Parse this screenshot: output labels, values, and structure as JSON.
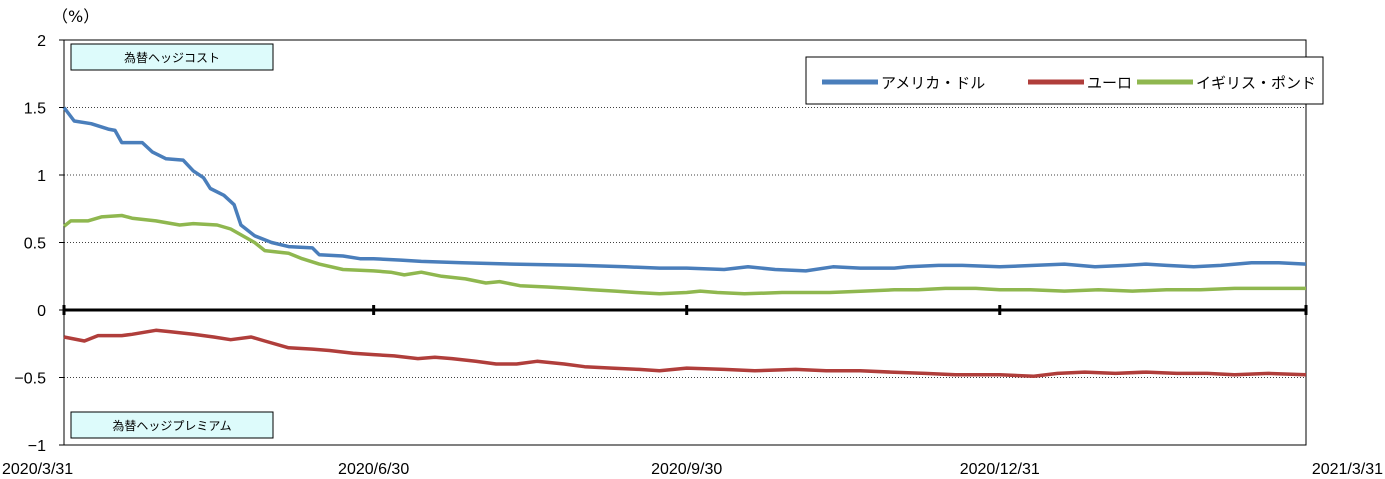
{
  "chart_data": {
    "type": "line",
    "unit": "（%）",
    "ylim": [
      -1,
      2
    ],
    "yticks": [
      "2",
      "1.5",
      "1",
      "0.5",
      "0",
      "−0.5",
      "−1"
    ],
    "ytick_values": [
      2,
      1.5,
      1,
      0.5,
      0,
      -0.5,
      -1
    ],
    "xlim": [
      "2020-03-31",
      "2021-03-31"
    ],
    "xticks": [
      "2020/3/31",
      "2020/6/30",
      "2020/9/30",
      "2020/12/31",
      "2021/3/31"
    ],
    "xtick_values": [
      "2020-03-31",
      "2020-06-30",
      "2020-09-30",
      "2020-12-31",
      "2021-03-31"
    ],
    "grid": "horizontal dotted",
    "annotations": {
      "cost": "為替ヘッジコスト",
      "premium": "為替ヘッジプレミアム"
    },
    "legend_position": "top-right",
    "series": [
      {
        "name": "アメリカ・ドル",
        "color": "#4a7ebb",
        "points": [
          [
            "2020-03-31",
            1.5
          ],
          [
            "2020-04-03",
            1.4
          ],
          [
            "2020-04-08",
            1.38
          ],
          [
            "2020-04-13",
            1.34
          ],
          [
            "2020-04-15",
            1.33
          ],
          [
            "2020-04-17",
            1.24
          ],
          [
            "2020-04-23",
            1.24
          ],
          [
            "2020-04-26",
            1.17
          ],
          [
            "2020-04-30",
            1.12
          ],
          [
            "2020-05-05",
            1.11
          ],
          [
            "2020-05-08",
            1.03
          ],
          [
            "2020-05-11",
            0.98
          ],
          [
            "2020-05-13",
            0.9
          ],
          [
            "2020-05-17",
            0.85
          ],
          [
            "2020-05-20",
            0.78
          ],
          [
            "2020-05-22",
            0.63
          ],
          [
            "2020-05-26",
            0.55
          ],
          [
            "2020-05-31",
            0.5
          ],
          [
            "2020-06-05",
            0.47
          ],
          [
            "2020-06-12",
            0.46
          ],
          [
            "2020-06-14",
            0.41
          ],
          [
            "2020-06-21",
            0.4
          ],
          [
            "2020-06-26",
            0.38
          ],
          [
            "2020-06-30",
            0.38
          ],
          [
            "2020-07-08",
            0.37
          ],
          [
            "2020-07-14",
            0.36
          ],
          [
            "2020-07-26",
            0.35
          ],
          [
            "2020-08-10",
            0.34
          ],
          [
            "2020-08-30",
            0.33
          ],
          [
            "2020-09-12",
            0.32
          ],
          [
            "2020-09-22",
            0.31
          ],
          [
            "2020-09-30",
            0.31
          ],
          [
            "2020-10-11",
            0.3
          ],
          [
            "2020-10-18",
            0.32
          ],
          [
            "2020-10-26",
            0.3
          ],
          [
            "2020-11-04",
            0.29
          ],
          [
            "2020-11-12",
            0.32
          ],
          [
            "2020-11-20",
            0.31
          ],
          [
            "2020-11-30",
            0.31
          ],
          [
            "2020-12-04",
            0.32
          ],
          [
            "2020-12-13",
            0.33
          ],
          [
            "2020-12-20",
            0.33
          ],
          [
            "2020-12-31",
            0.32
          ],
          [
            "2021-01-10",
            0.33
          ],
          [
            "2021-01-19",
            0.34
          ],
          [
            "2021-01-28",
            0.32
          ],
          [
            "2021-02-06",
            0.33
          ],
          [
            "2021-02-12",
            0.34
          ],
          [
            "2021-02-18",
            0.33
          ],
          [
            "2021-02-26",
            0.32
          ],
          [
            "2021-03-06",
            0.33
          ],
          [
            "2021-03-15",
            0.35
          ],
          [
            "2021-03-23",
            0.35
          ],
          [
            "2021-03-31",
            0.34
          ],
          [
            "2020-12-31",
            0.32
          ]
        ]
      },
      {
        "name": "ユーロ",
        "color": "#b03e3b",
        "points": [
          [
            "2020-03-31",
            -0.2
          ],
          [
            "2020-04-06",
            -0.23
          ],
          [
            "2020-04-10",
            -0.19
          ],
          [
            "2020-04-17",
            -0.19
          ],
          [
            "2020-04-20",
            -0.18
          ],
          [
            "2020-04-27",
            -0.15
          ],
          [
            "2020-05-01",
            -0.16
          ],
          [
            "2020-05-08",
            -0.18
          ],
          [
            "2020-05-14",
            -0.2
          ],
          [
            "2020-05-19",
            -0.22
          ],
          [
            "2020-05-25",
            -0.2
          ],
          [
            "2020-05-29",
            -0.23
          ],
          [
            "2020-06-05",
            -0.28
          ],
          [
            "2020-06-12",
            -0.29
          ],
          [
            "2020-06-17",
            -0.3
          ],
          [
            "2020-06-24",
            -0.32
          ],
          [
            "2020-06-30",
            -0.33
          ],
          [
            "2020-07-06",
            -0.34
          ],
          [
            "2020-07-13",
            -0.36
          ],
          [
            "2020-07-18",
            -0.35
          ],
          [
            "2020-07-23",
            -0.36
          ],
          [
            "2020-07-30",
            -0.38
          ],
          [
            "2020-08-05",
            -0.4
          ],
          [
            "2020-08-11",
            -0.4
          ],
          [
            "2020-08-17",
            -0.38
          ],
          [
            "2020-08-25",
            -0.4
          ],
          [
            "2020-08-31",
            -0.42
          ],
          [
            "2020-09-08",
            -0.43
          ],
          [
            "2020-09-16",
            -0.44
          ],
          [
            "2020-09-22",
            -0.45
          ],
          [
            "2020-09-30",
            -0.43
          ],
          [
            "2020-10-11",
            -0.44
          ],
          [
            "2020-10-20",
            -0.45
          ],
          [
            "2020-11-01",
            -0.44
          ],
          [
            "2020-11-10",
            -0.45
          ],
          [
            "2020-11-20",
            -0.45
          ],
          [
            "2020-11-29",
            -0.46
          ],
          [
            "2020-12-09",
            -0.47
          ],
          [
            "2020-12-18",
            -0.48
          ],
          [
            "2020-12-31",
            -0.48
          ],
          [
            "2021-01-10",
            -0.49
          ],
          [
            "2021-01-17",
            -0.47
          ],
          [
            "2021-01-25",
            -0.46
          ],
          [
            "2021-02-03",
            -0.47
          ],
          [
            "2021-02-12",
            -0.46
          ],
          [
            "2021-02-21",
            -0.47
          ],
          [
            "2021-03-02",
            -0.47
          ],
          [
            "2021-03-10",
            -0.48
          ],
          [
            "2021-03-20",
            -0.47
          ],
          [
            "2021-03-31",
            -0.48
          ]
        ]
      },
      {
        "name": "イギリス・ポンド",
        "color": "#8fb74f",
        "points": [
          [
            "2020-03-31",
            0.62
          ],
          [
            "2020-04-02",
            0.66
          ],
          [
            "2020-04-07",
            0.66
          ],
          [
            "2020-04-11",
            0.69
          ],
          [
            "2020-04-17",
            0.7
          ],
          [
            "2020-04-20",
            0.68
          ],
          [
            "2020-04-27",
            0.66
          ],
          [
            "2020-05-04",
            0.63
          ],
          [
            "2020-05-08",
            0.64
          ],
          [
            "2020-05-15",
            0.63
          ],
          [
            "2020-05-19",
            0.6
          ],
          [
            "2020-05-26",
            0.5
          ],
          [
            "2020-05-29",
            0.44
          ],
          [
            "2020-06-05",
            0.42
          ],
          [
            "2020-06-09",
            0.38
          ],
          [
            "2020-06-14",
            0.34
          ],
          [
            "2020-06-21",
            0.3
          ],
          [
            "2020-06-30",
            0.29
          ],
          [
            "2020-07-05",
            0.28
          ],
          [
            "2020-07-09",
            0.26
          ],
          [
            "2020-07-14",
            0.28
          ],
          [
            "2020-07-20",
            0.25
          ],
          [
            "2020-07-27",
            0.23
          ],
          [
            "2020-08-02",
            0.2
          ],
          [
            "2020-08-06",
            0.21
          ],
          [
            "2020-08-12",
            0.18
          ],
          [
            "2020-08-20",
            0.17
          ],
          [
            "2020-08-27",
            0.16
          ],
          [
            "2020-09-02",
            0.15
          ],
          [
            "2020-09-09",
            0.14
          ],
          [
            "2020-09-15",
            0.13
          ],
          [
            "2020-09-22",
            0.12
          ],
          [
            "2020-09-30",
            0.13
          ],
          [
            "2020-10-04",
            0.14
          ],
          [
            "2020-10-09",
            0.13
          ],
          [
            "2020-10-17",
            0.12
          ],
          [
            "2020-10-28",
            0.13
          ],
          [
            "2020-11-11",
            0.13
          ],
          [
            "2020-11-21",
            0.14
          ],
          [
            "2020-11-30",
            0.15
          ],
          [
            "2020-12-07",
            0.15
          ],
          [
            "2020-12-15",
            0.16
          ],
          [
            "2020-12-24",
            0.16
          ],
          [
            "2020-12-31",
            0.15
          ],
          [
            "2021-01-09",
            0.15
          ],
          [
            "2021-01-19",
            0.14
          ],
          [
            "2021-01-29",
            0.15
          ],
          [
            "2021-02-08",
            0.14
          ],
          [
            "2021-02-18",
            0.15
          ],
          [
            "2021-02-28",
            0.15
          ],
          [
            "2021-03-10",
            0.16
          ],
          [
            "2021-03-20",
            0.16
          ],
          [
            "2021-03-31",
            0.16
          ]
        ]
      }
    ]
  }
}
